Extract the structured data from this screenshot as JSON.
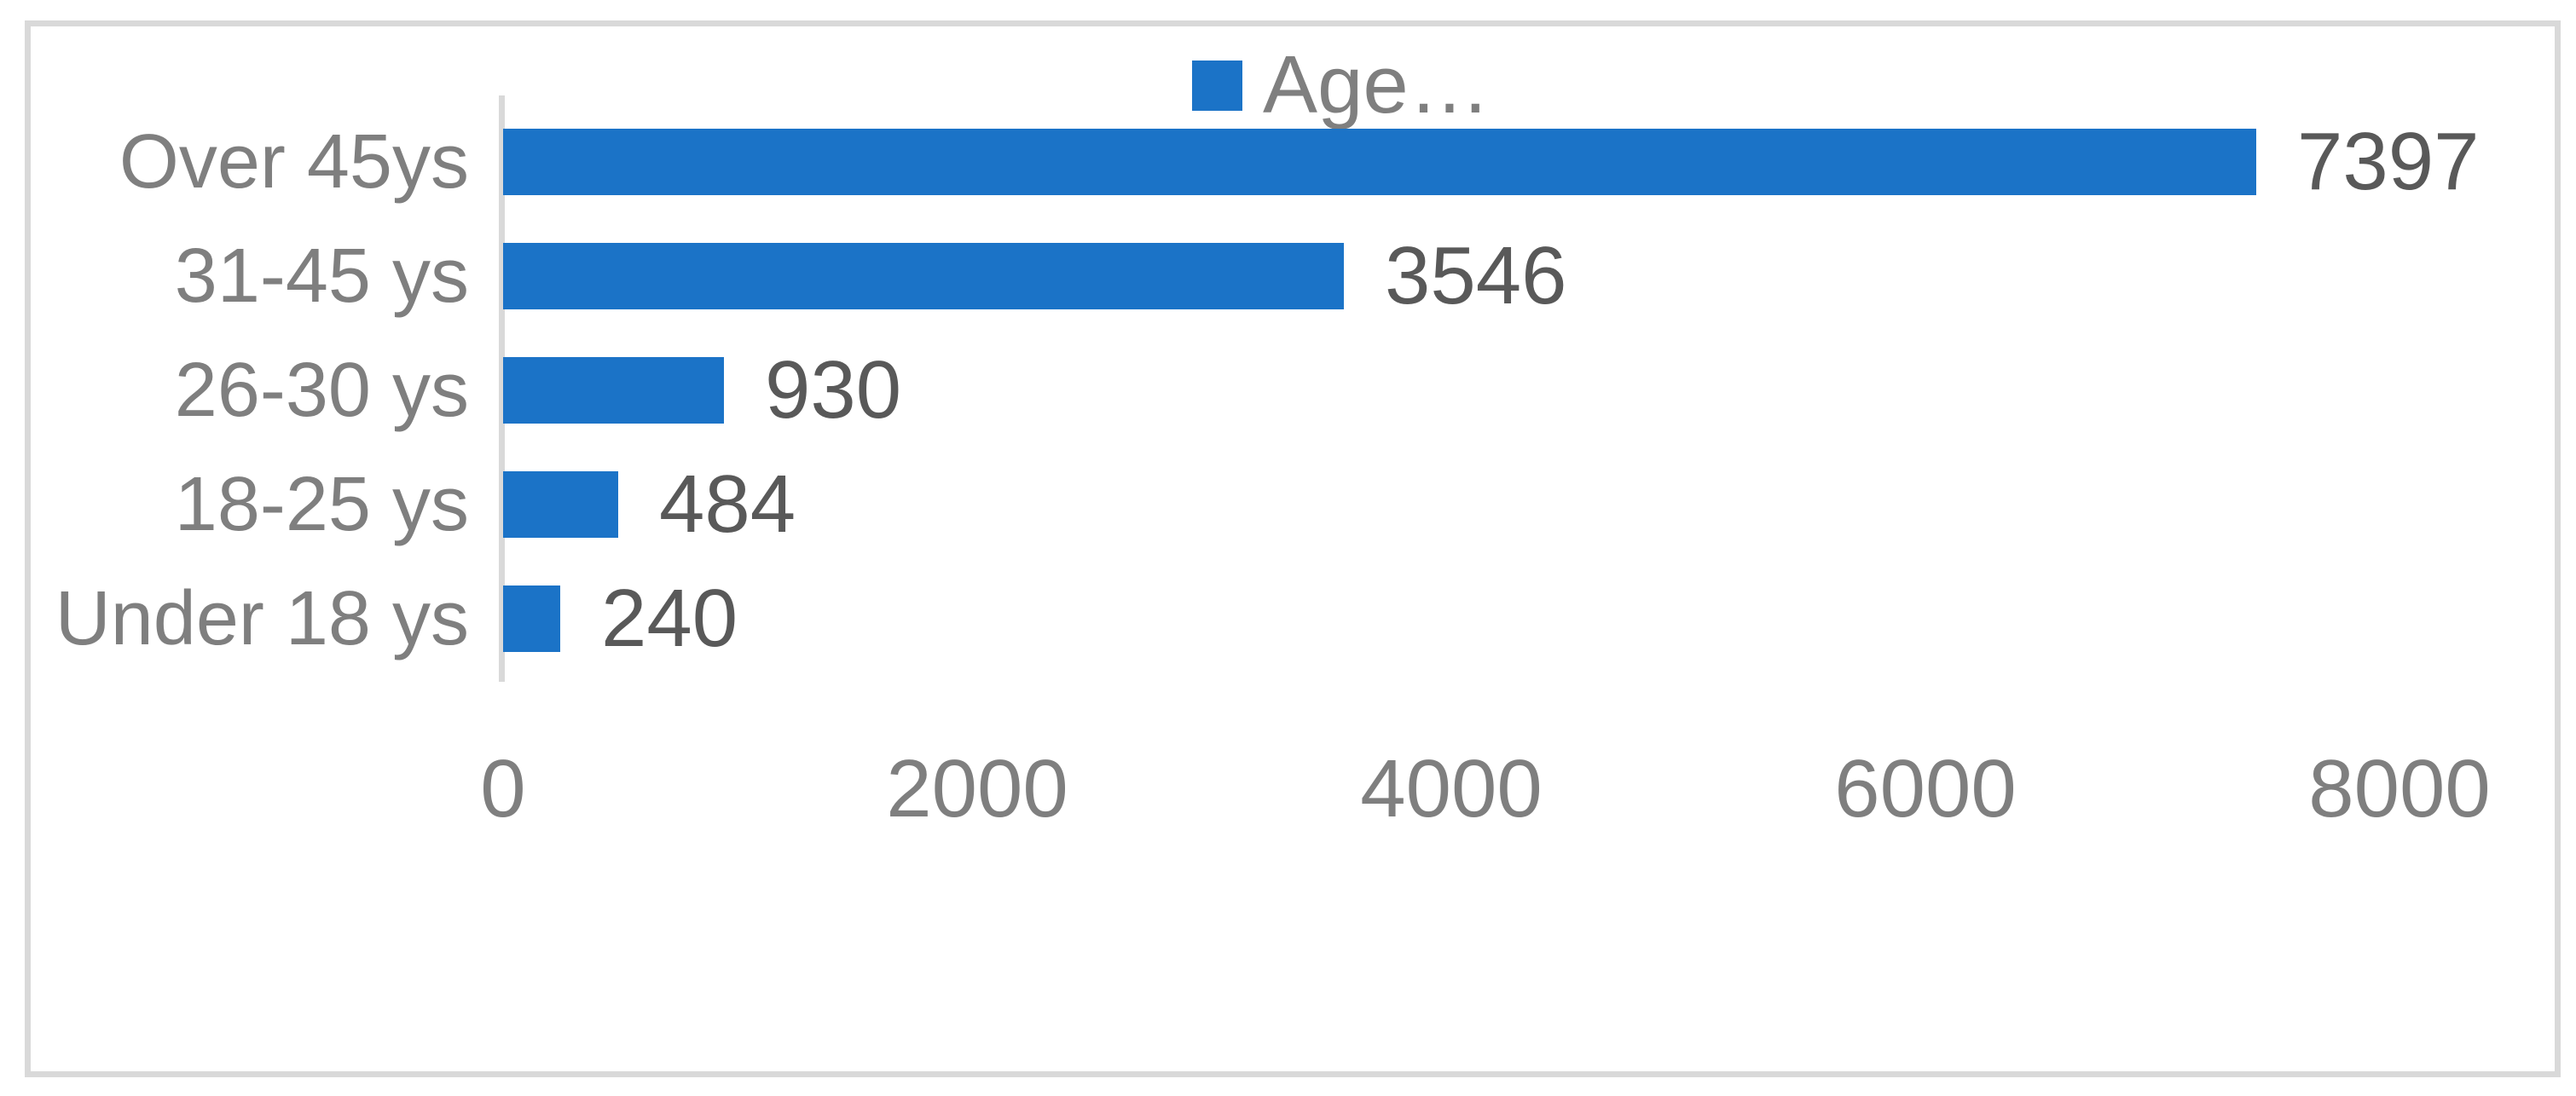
{
  "chart_data": {
    "type": "bar",
    "orientation": "horizontal",
    "legend": "Age…",
    "legend_position": "top-center",
    "categories": [
      "Over 45ys",
      "31-45 ys",
      "26-30 ys",
      "18-25 ys",
      "Under 18 ys"
    ],
    "values": [
      7397,
      3546,
      930,
      484,
      240
    ],
    "data_labels": [
      "7397",
      "3546",
      "930",
      "484",
      "240"
    ],
    "x_ticks": [
      "0",
      "2000",
      "4000",
      "6000",
      "8000"
    ],
    "x_tick_values": [
      0,
      2000,
      4000,
      6000,
      8000
    ],
    "xlim": [
      0,
      8000
    ],
    "grid": false,
    "title": "",
    "xlabel": "",
    "ylabel": "",
    "colors": {
      "bar": "#1b73c7",
      "frame_border": "#d9d9d9",
      "axis_line": "#d9d9d9",
      "category_label": "#7f7f7f",
      "tick_label": "#7f7f7f",
      "data_label": "#595959",
      "legend_label": "#7f7f7f",
      "background": "#ffffff"
    }
  }
}
